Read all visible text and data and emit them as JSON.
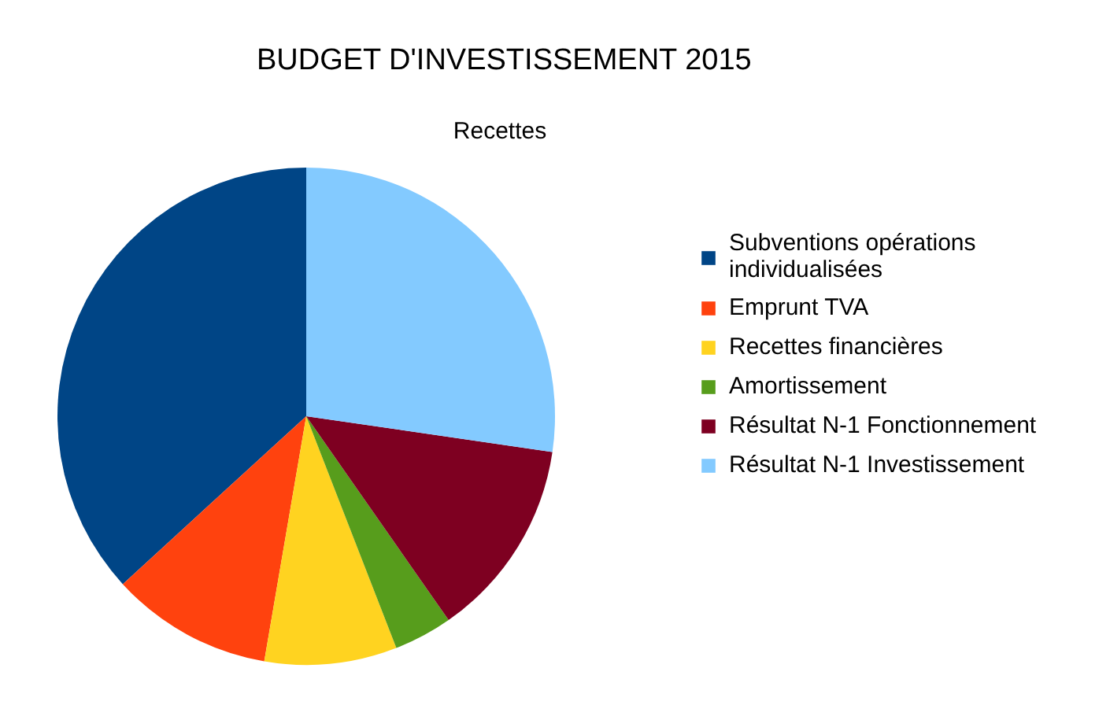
{
  "chart_data": {
    "type": "pie",
    "title": "BUDGET D'INVESTISSEMENT 2015",
    "subtitle": "Recettes",
    "categories": [
      "Subventions opérations individualisées",
      "Emprunt TVA",
      "Recettes financières",
      "Amortissement",
      "Résultat N-1 Fonctionnement",
      "Résultat N-1 Investissement"
    ],
    "values": [
      36.8,
      10.5,
      8.6,
      3.8,
      13.0,
      27.3
    ],
    "colors": [
      "#004586",
      "#ff420e",
      "#ffd320",
      "#579d1c",
      "#7e0021",
      "#83caff"
    ],
    "legend": "right"
  }
}
